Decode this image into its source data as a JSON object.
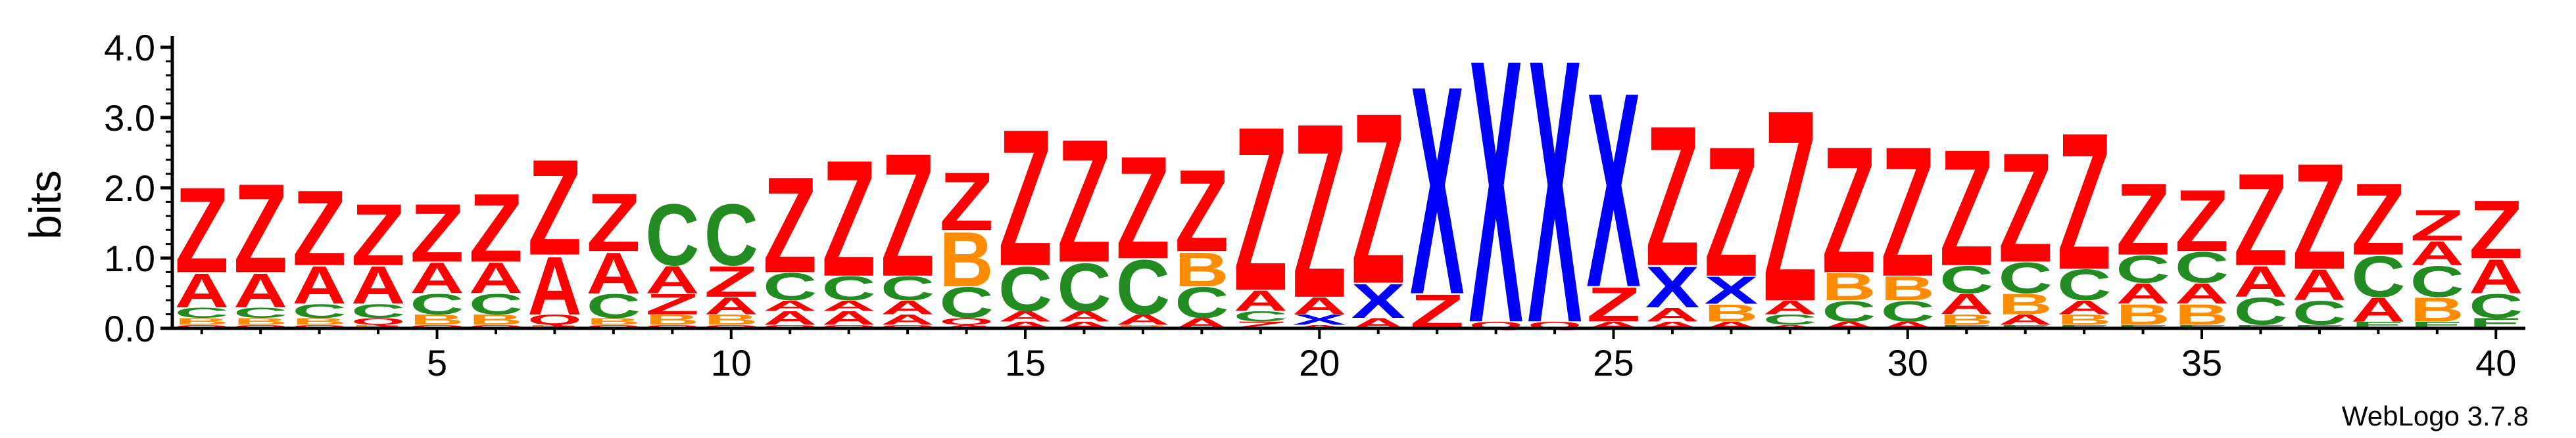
{
  "chart_data": {
    "type": "sequence-logo",
    "ylabel": "bits",
    "ylim": [
      0,
      4.0
    ],
    "yticks": [
      "0.0",
      "1.0",
      "2.0",
      "3.0",
      "4.0"
    ],
    "xticks": [
      5,
      10,
      15,
      20,
      25,
      30,
      35,
      40
    ],
    "software_label": "WebLogo 3.7.8",
    "colors": {
      "Z": "#ff0000",
      "A": "#ff0000",
      "Q": "#ff0000",
      "C": "#228b22",
      "E": "#228b22",
      "B": "#ff8c00",
      "X": "#0000ff"
    },
    "positions": [
      {
        "pos": 1,
        "stack": [
          {
            "l": "Q",
            "h": 0.05
          },
          {
            "l": "B",
            "h": 0.1
          },
          {
            "l": "C",
            "h": 0.15
          },
          {
            "l": "A",
            "h": 0.5
          },
          {
            "l": "Z",
            "h": 1.25
          }
        ]
      },
      {
        "pos": 2,
        "stack": [
          {
            "l": "Q",
            "h": 0.05
          },
          {
            "l": "B",
            "h": 0.1
          },
          {
            "l": "C",
            "h": 0.15
          },
          {
            "l": "A",
            "h": 0.5
          },
          {
            "l": "Z",
            "h": 1.3
          }
        ]
      },
      {
        "pos": 3,
        "stack": [
          {
            "l": "Q",
            "h": 0.05
          },
          {
            "l": "B",
            "h": 0.1
          },
          {
            "l": "C",
            "h": 0.2
          },
          {
            "l": "A",
            "h": 0.55
          },
          {
            "l": "Z",
            "h": 1.1
          }
        ]
      },
      {
        "pos": 4,
        "stack": [
          {
            "l": "B",
            "h": 0.05
          },
          {
            "l": "Q",
            "h": 0.1
          },
          {
            "l": "C",
            "h": 0.2
          },
          {
            "l": "A",
            "h": 0.55
          },
          {
            "l": "Z",
            "h": 0.9
          }
        ]
      },
      {
        "pos": 5,
        "stack": [
          {
            "l": "Q",
            "h": 0.05
          },
          {
            "l": "B",
            "h": 0.15
          },
          {
            "l": "C",
            "h": 0.3
          },
          {
            "l": "A",
            "h": 0.45
          },
          {
            "l": "Z",
            "h": 0.85
          }
        ]
      },
      {
        "pos": 6,
        "stack": [
          {
            "l": "Q",
            "h": 0.05
          },
          {
            "l": "B",
            "h": 0.15
          },
          {
            "l": "C",
            "h": 0.3
          },
          {
            "l": "A",
            "h": 0.45
          },
          {
            "l": "Z",
            "h": 1.0
          }
        ]
      },
      {
        "pos": 7,
        "stack": [
          {
            "l": "B",
            "h": 0.05
          },
          {
            "l": "Q",
            "h": 0.15
          },
          {
            "l": "A",
            "h": 0.85
          },
          {
            "l": "Z",
            "h": 1.4
          }
        ]
      },
      {
        "pos": 8,
        "stack": [
          {
            "l": "Q",
            "h": 0.05
          },
          {
            "l": "B",
            "h": 0.1
          },
          {
            "l": "C",
            "h": 0.35
          },
          {
            "l": "A",
            "h": 0.6
          },
          {
            "l": "Z",
            "h": 0.85
          }
        ]
      },
      {
        "pos": 9,
        "stack": [
          {
            "l": "Q",
            "h": 0.05
          },
          {
            "l": "B",
            "h": 0.15
          },
          {
            "l": "Z",
            "h": 0.3
          },
          {
            "l": "A",
            "h": 0.4
          },
          {
            "l": "C",
            "h": 0.9
          }
        ]
      },
      {
        "pos": 10,
        "stack": [
          {
            "l": "Q",
            "h": 0.05
          },
          {
            "l": "B",
            "h": 0.15
          },
          {
            "l": "A",
            "h": 0.25
          },
          {
            "l": "Z",
            "h": 0.45
          },
          {
            "l": "C",
            "h": 0.9
          }
        ]
      },
      {
        "pos": 11,
        "stack": [
          {
            "l": "Q",
            "h": 0.05
          },
          {
            "l": "A",
            "h": 0.2
          },
          {
            "l": "A",
            "h": 0.15
          },
          {
            "l": "C",
            "h": 0.4
          },
          {
            "l": "Z",
            "h": 1.4
          }
        ]
      },
      {
        "pos": 12,
        "stack": [
          {
            "l": "Q",
            "h": 0.05
          },
          {
            "l": "A",
            "h": 0.2
          },
          {
            "l": "A",
            "h": 0.15
          },
          {
            "l": "C",
            "h": 0.35
          },
          {
            "l": "Z",
            "h": 1.7
          }
        ]
      },
      {
        "pos": 13,
        "stack": [
          {
            "l": "Q",
            "h": 0.05
          },
          {
            "l": "A",
            "h": 0.15
          },
          {
            "l": "A",
            "h": 0.2
          },
          {
            "l": "C",
            "h": 0.35
          },
          {
            "l": "Z",
            "h": 1.8
          }
        ]
      },
      {
        "pos": 14,
        "stack": [
          {
            "l": "A",
            "h": 0.05
          },
          {
            "l": "Q",
            "h": 0.1
          },
          {
            "l": "C",
            "h": 0.45
          },
          {
            "l": "B",
            "h": 0.8
          },
          {
            "l": "Z",
            "h": 0.85
          }
        ]
      },
      {
        "pos": 15,
        "stack": [
          {
            "l": "A",
            "h": 0.1
          },
          {
            "l": "A",
            "h": 0.15
          },
          {
            "l": "C",
            "h": 0.65
          },
          {
            "l": "Z",
            "h": 2.0
          }
        ]
      },
      {
        "pos": 16,
        "stack": [
          {
            "l": "A",
            "h": 0.1
          },
          {
            "l": "A",
            "h": 0.15
          },
          {
            "l": "C",
            "h": 0.7
          },
          {
            "l": "Z",
            "h": 1.8
          }
        ]
      },
      {
        "pos": 17,
        "stack": [
          {
            "l": "B",
            "h": 0.05
          },
          {
            "l": "A",
            "h": 0.15
          },
          {
            "l": "C",
            "h": 0.8
          },
          {
            "l": "Z",
            "h": 1.5
          }
        ]
      },
      {
        "pos": 18,
        "stack": [
          {
            "l": "A",
            "h": 0.15
          },
          {
            "l": "C",
            "h": 0.45
          },
          {
            "l": "B",
            "h": 0.5
          },
          {
            "l": "Z",
            "h": 1.2
          }
        ]
      },
      {
        "pos": 19,
        "stack": [
          {
            "l": "Z",
            "h": 0.1
          },
          {
            "l": "C",
            "h": 0.15
          },
          {
            "l": "A",
            "h": 0.3
          },
          {
            "l": "Z",
            "h": 2.4
          }
        ]
      },
      {
        "pos": 20,
        "stack": [
          {
            "l": "A",
            "h": 0.05
          },
          {
            "l": "X",
            "h": 0.15
          },
          {
            "l": "A",
            "h": 0.25
          },
          {
            "l": "Z",
            "h": 2.55
          }
        ]
      },
      {
        "pos": 21,
        "stack": [
          {
            "l": "A",
            "h": 0.15
          },
          {
            "l": "X",
            "h": 0.5
          },
          {
            "l": "Z",
            "h": 2.5
          }
        ]
      },
      {
        "pos": 22,
        "stack": [
          {
            "l": "Z",
            "h": 0.5
          },
          {
            "l": "X",
            "h": 3.05
          }
        ]
      },
      {
        "pos": 23,
        "stack": [
          {
            "l": "Q",
            "h": 0.1
          },
          {
            "l": "X",
            "h": 3.85
          }
        ]
      },
      {
        "pos": 24,
        "stack": [
          {
            "l": "Q",
            "h": 0.1
          },
          {
            "l": "X",
            "h": 3.85
          }
        ]
      },
      {
        "pos": 25,
        "stack": [
          {
            "l": "A",
            "h": 0.1
          },
          {
            "l": "Z",
            "h": 0.5
          },
          {
            "l": "X",
            "h": 2.85
          }
        ]
      },
      {
        "pos": 26,
        "stack": [
          {
            "l": "A",
            "h": 0.1
          },
          {
            "l": "A",
            "h": 0.2
          },
          {
            "l": "X",
            "h": 0.6
          },
          {
            "l": "Z",
            "h": 2.05
          }
        ]
      },
      {
        "pos": 27,
        "stack": [
          {
            "l": "A",
            "h": 0.1
          },
          {
            "l": "B",
            "h": 0.25
          },
          {
            "l": "X",
            "h": 0.4
          },
          {
            "l": "Z",
            "h": 1.9
          }
        ]
      },
      {
        "pos": 28,
        "stack": [
          {
            "l": "A",
            "h": 0.05
          },
          {
            "l": "C",
            "h": 0.15
          },
          {
            "l": "A",
            "h": 0.2
          },
          {
            "l": "Z",
            "h": 2.8
          }
        ]
      },
      {
        "pos": 29,
        "stack": [
          {
            "l": "A",
            "h": 0.1
          },
          {
            "l": "C",
            "h": 0.3
          },
          {
            "l": "B",
            "h": 0.4
          },
          {
            "l": "Z",
            "h": 1.85
          }
        ]
      },
      {
        "pos": 30,
        "stack": [
          {
            "l": "A",
            "h": 0.1
          },
          {
            "l": "C",
            "h": 0.3
          },
          {
            "l": "B",
            "h": 0.35
          },
          {
            "l": "Z",
            "h": 1.9
          }
        ]
      },
      {
        "pos": 31,
        "stack": [
          {
            "l": "E",
            "h": 0.05
          },
          {
            "l": "B",
            "h": 0.15
          },
          {
            "l": "A",
            "h": 0.3
          },
          {
            "l": "C",
            "h": 0.4
          },
          {
            "l": "Z",
            "h": 1.7
          }
        ]
      },
      {
        "pos": 32,
        "stack": [
          {
            "l": "E",
            "h": 0.05
          },
          {
            "l": "A",
            "h": 0.15
          },
          {
            "l": "B",
            "h": 0.3
          },
          {
            "l": "C",
            "h": 0.45
          },
          {
            "l": "Z",
            "h": 1.6
          }
        ]
      },
      {
        "pos": 33,
        "stack": [
          {
            "l": "E",
            "h": 0.05
          },
          {
            "l": "B",
            "h": 0.15
          },
          {
            "l": "A",
            "h": 0.2
          },
          {
            "l": "C",
            "h": 0.45
          },
          {
            "l": "Z",
            "h": 2.0
          }
        ]
      },
      {
        "pos": 34,
        "stack": [
          {
            "l": "E",
            "h": 0.05
          },
          {
            "l": "B",
            "h": 0.3
          },
          {
            "l": "A",
            "h": 0.3
          },
          {
            "l": "C",
            "h": 0.4
          },
          {
            "l": "Z",
            "h": 1.05
          }
        ]
      },
      {
        "pos": 35,
        "stack": [
          {
            "l": "E",
            "h": 0.05
          },
          {
            "l": "B",
            "h": 0.3
          },
          {
            "l": "A",
            "h": 0.3
          },
          {
            "l": "C",
            "h": 0.45
          },
          {
            "l": "Z",
            "h": 0.9
          }
        ]
      },
      {
        "pos": 36,
        "stack": [
          {
            "l": "E",
            "h": 0.05
          },
          {
            "l": "C",
            "h": 0.4
          },
          {
            "l": "A",
            "h": 0.45
          },
          {
            "l": "Z",
            "h": 1.35
          }
        ]
      },
      {
        "pos": 37,
        "stack": [
          {
            "l": "E",
            "h": 0.05
          },
          {
            "l": "C",
            "h": 0.35
          },
          {
            "l": "A",
            "h": 0.45
          },
          {
            "l": "Z",
            "h": 1.55
          }
        ]
      },
      {
        "pos": 38,
        "stack": [
          {
            "l": "E",
            "h": 0.1
          },
          {
            "l": "A",
            "h": 0.35
          },
          {
            "l": "C",
            "h": 0.6
          },
          {
            "l": "Z",
            "h": 1.05
          }
        ]
      },
      {
        "pos": 39,
        "stack": [
          {
            "l": "E",
            "h": 0.1
          },
          {
            "l": "B",
            "h": 0.35
          },
          {
            "l": "C",
            "h": 0.45
          },
          {
            "l": "A",
            "h": 0.35
          },
          {
            "l": "Z",
            "h": 0.45
          }
        ]
      },
      {
        "pos": 40,
        "stack": [
          {
            "l": "E",
            "h": 0.15
          },
          {
            "l": "C",
            "h": 0.35
          },
          {
            "l": "A",
            "h": 0.5
          },
          {
            "l": "Z",
            "h": 0.85
          }
        ]
      }
    ]
  }
}
